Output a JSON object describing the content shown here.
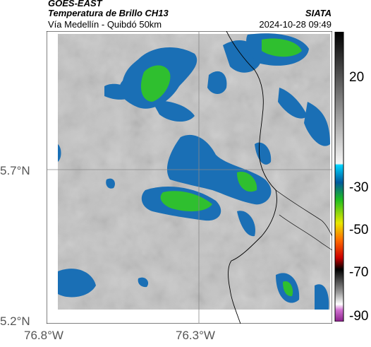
{
  "header": {
    "satellite": "GOES-EAST",
    "product": "Temperatura de Brillo CH13",
    "route": "Vía Medellín - Quibdó 50km",
    "brand": "SIATA",
    "timestamp": "2024-10-28 09:49"
  },
  "axes": {
    "lat_labels": [
      "5.7°N",
      "5.2°N"
    ],
    "lon_labels": [
      "76.8°W",
      "76.3°W"
    ]
  },
  "colorbar": {
    "labels": [
      "20",
      "-30",
      "-50",
      "-70",
      "-90"
    ],
    "colors": [
      "#000000",
      "#9e9e9e",
      "#00b4f0",
      "#005a9c",
      "#1fbe1f",
      "#e8e800",
      "#ff6a00",
      "#cc0000",
      "#b440b4"
    ]
  },
  "colors": {
    "background_gray": "#bdbdbd",
    "cold_blue": "#1d6fb8",
    "cloud_green": "#2fbf2f",
    "coast_line": "#000000"
  }
}
